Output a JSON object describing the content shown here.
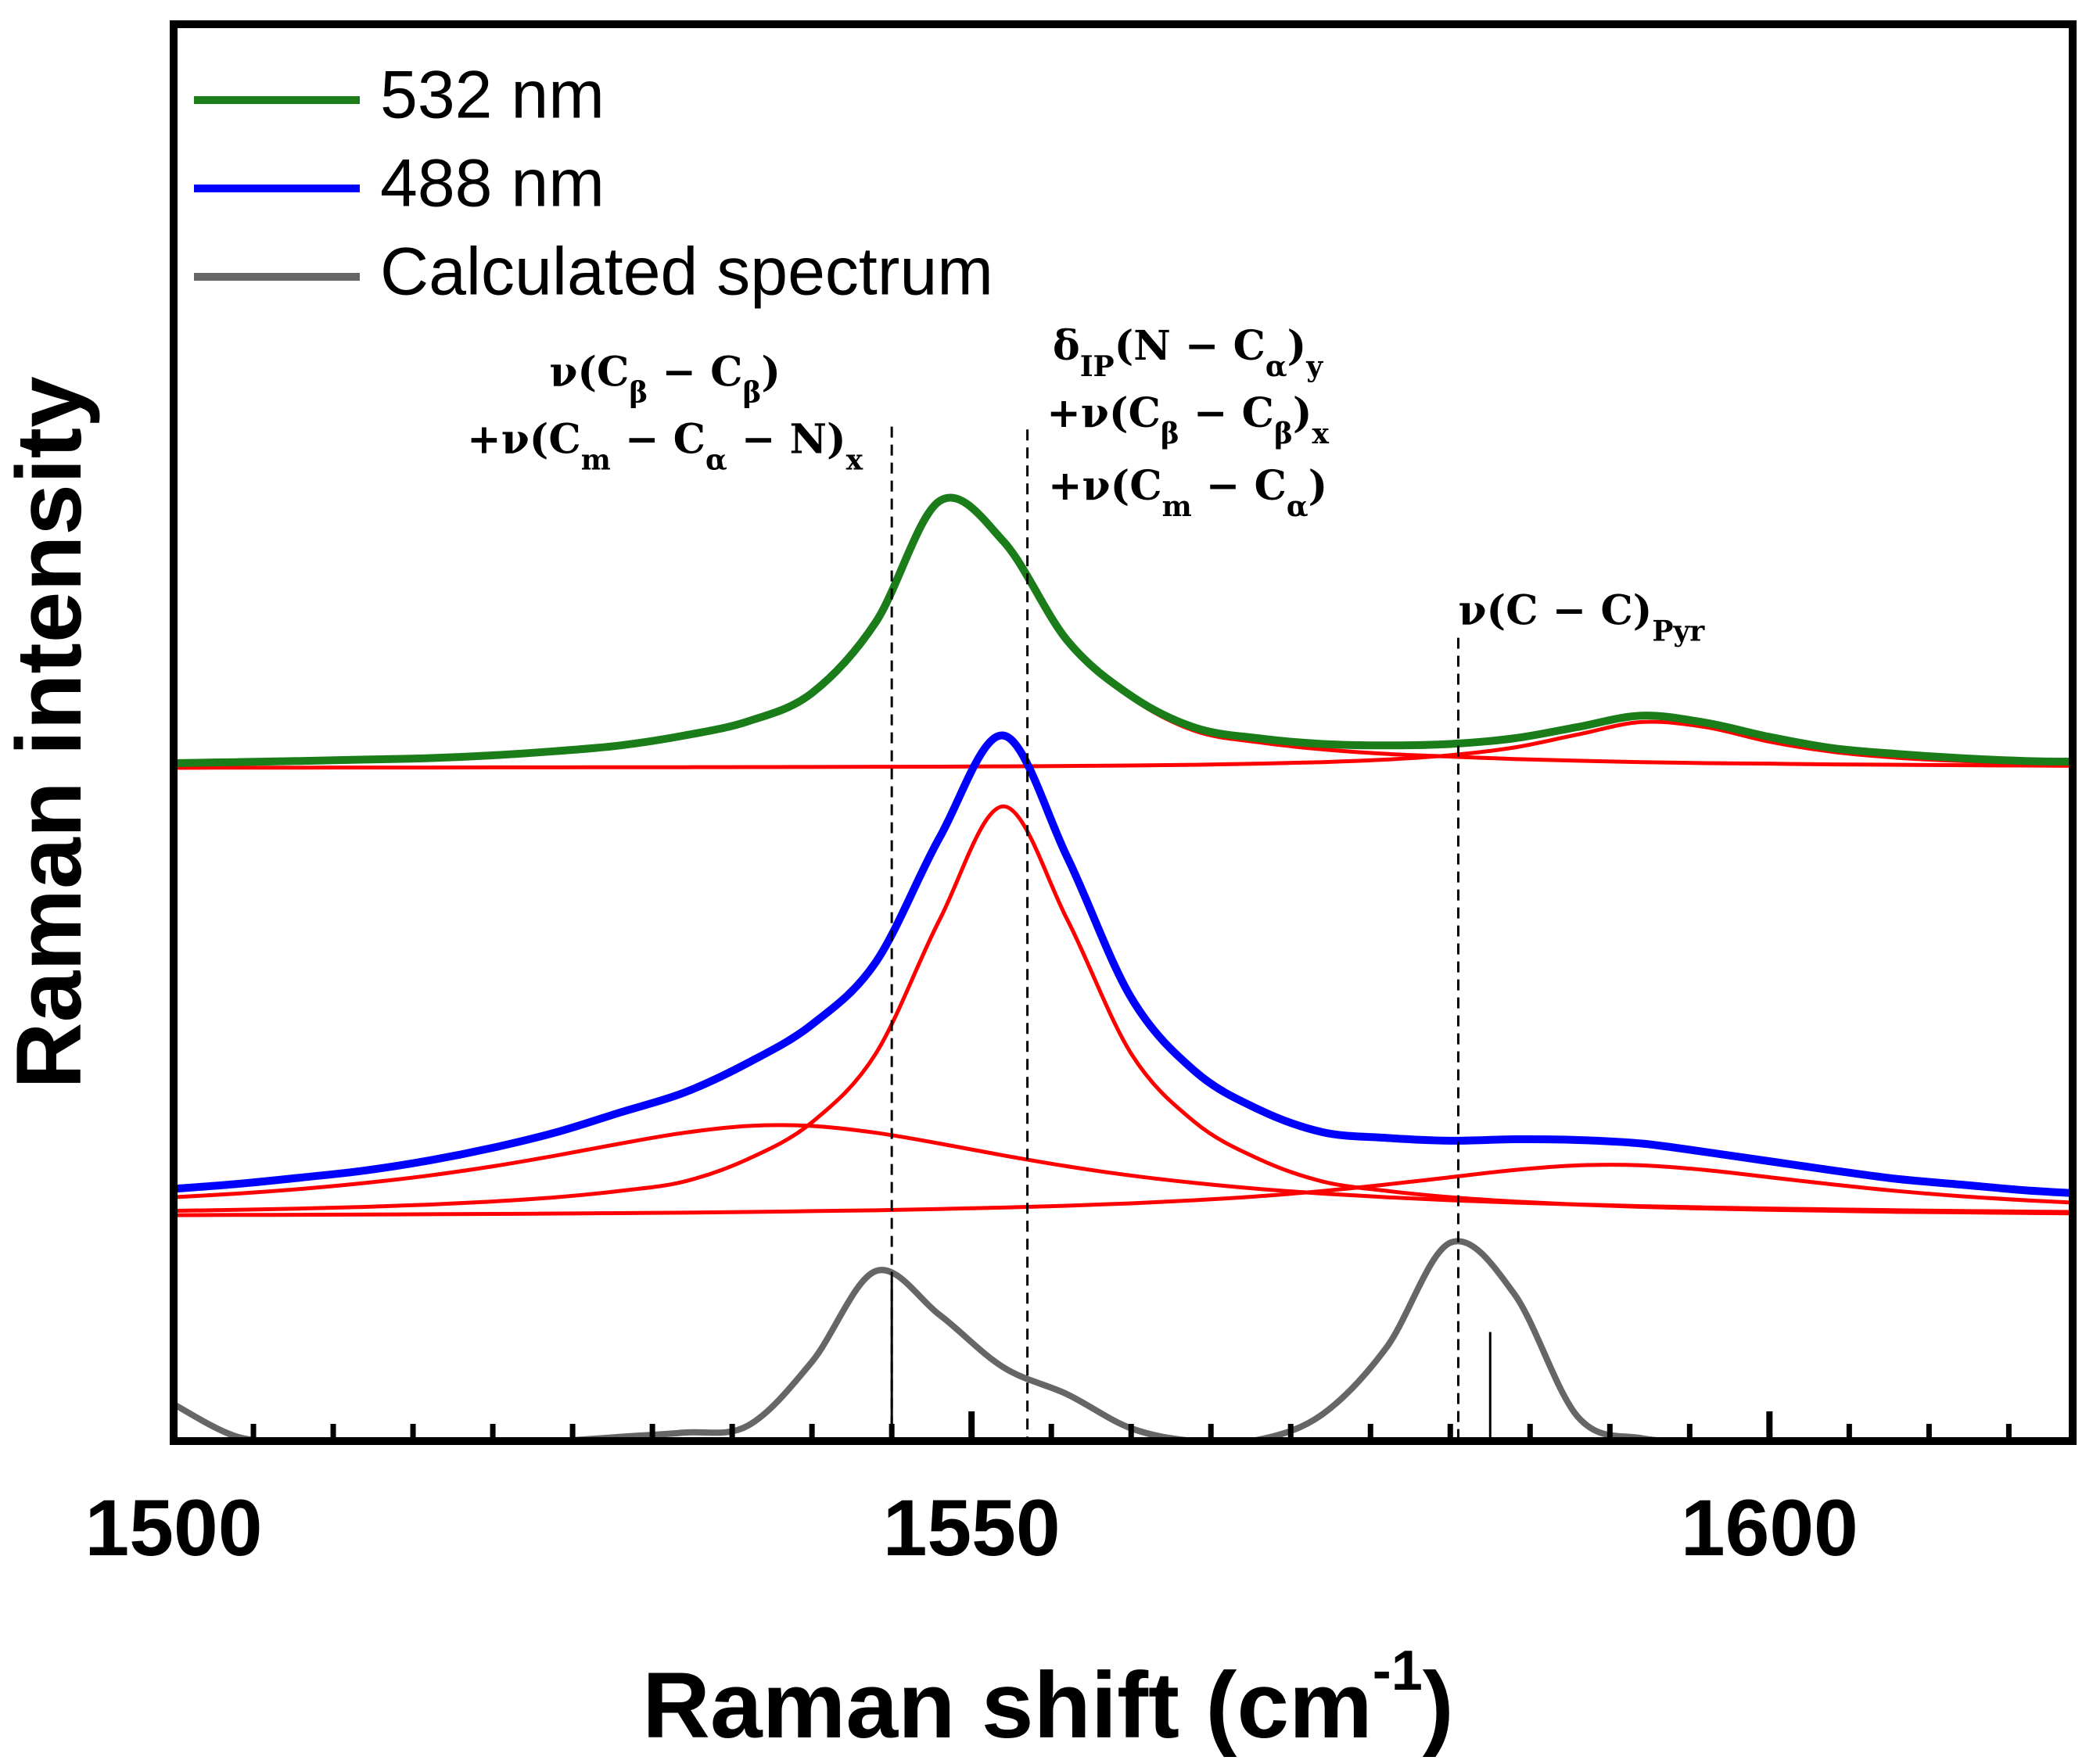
{
  "chart_data": {
    "type": "line",
    "xlabel": [
      "Raman shift (cm",
      "-1",
      ")"
    ],
    "ylabel": "Raman intensity",
    "xlim": [
      1500,
      1619
    ],
    "ylim": [
      0,
      100
    ],
    "xticks": [
      1500,
      1550,
      1600
    ],
    "xminorticks": [
      1505,
      1510,
      1515,
      1520,
      1525,
      1530,
      1535,
      1540,
      1545,
      1555,
      1560,
      1565,
      1570,
      1575,
      1580,
      1585,
      1590,
      1595,
      1605,
      1610,
      1615
    ],
    "legend": "upper left",
    "x": [
      1500,
      1504,
      1508,
      1512,
      1516,
      1520,
      1524,
      1528,
      1532,
      1536,
      1540,
      1544,
      1548,
      1552,
      1556,
      1560,
      1564,
      1568,
      1572,
      1576,
      1580,
      1584,
      1588,
      1592,
      1596,
      1600,
      1604,
      1608,
      1612,
      1616,
      1619
    ],
    "series": [
      {
        "color": "#ff0000",
        "values": [
          47.83,
          47.89,
          47.97,
          48.07,
          48.19,
          48.38,
          48.64,
          49.05,
          49.67,
          50.7,
          52.7,
          57.7,
          66.25,
          63.4,
          56.4,
          52.45,
          50.12,
          49.32,
          48.82,
          48.5,
          48.31,
          48.14,
          48.02,
          47.92,
          47.85,
          47.81,
          47.76,
          47.73,
          47.7,
          47.68,
          47.66
        ]
      },
      {
        "color": "#ff0000",
        "values": [
          47.52,
          47.53,
          47.53,
          47.54,
          47.54,
          47.55,
          47.55,
          47.56,
          47.56,
          47.57,
          47.58,
          47.59,
          47.6,
          47.62,
          47.65,
          47.68,
          47.73,
          47.81,
          47.92,
          48.1,
          48.41,
          48.95,
          49.87,
          50.75,
          50.39,
          49.36,
          48.64,
          48.23,
          48.0,
          47.86,
          47.79
        ]
      },
      {
        "color": "#ff0000",
        "values": [
          16.25,
          16.32,
          16.41,
          16.53,
          16.69,
          16.91,
          17.21,
          17.66,
          18.32,
          19.91,
          22.5,
          27.35,
          36.8,
          44.8,
          36.8,
          27.35,
          22.5,
          19.91,
          18.32,
          17.66,
          17.21,
          16.91,
          16.69,
          16.53,
          16.41,
          16.32,
          16.25,
          16.18,
          16.14,
          16.1,
          16.07
        ]
      },
      {
        "color": "#ff0000",
        "values": [
          17.21,
          17.47,
          17.8,
          18.22,
          18.74,
          19.39,
          20.16,
          21.0,
          21.76,
          22.24,
          22.24,
          21.76,
          21.0,
          20.16,
          19.39,
          18.74,
          18.22,
          17.8,
          17.47,
          17.21,
          17.0,
          16.83,
          16.7,
          16.58,
          16.49,
          16.41,
          16.35,
          16.29,
          16.24,
          16.2,
          16.17
        ]
      },
      {
        "color": "#ff0000",
        "values": [
          15.94,
          15.96,
          15.97,
          15.99,
          16.01,
          16.03,
          16.06,
          16.09,
          16.12,
          16.17,
          16.23,
          16.29,
          16.38,
          16.48,
          16.61,
          16.78,
          17.0,
          17.28,
          17.65,
          18.11,
          18.62,
          19.13,
          19.46,
          19.46,
          19.13,
          18.62,
          18.11,
          17.65,
          17.28,
          17.0,
          16.83
        ]
      },
      {
        "name": "532 nm",
        "color": "#1a7d1a",
        "values": [
          47.85,
          47.92,
          48.0,
          48.1,
          48.2,
          48.4,
          48.7,
          49.1,
          49.8,
          50.8,
          52.8,
          57.8,
          66.35,
          63.5,
          56.5,
          52.6,
          50.35,
          49.6,
          49.2,
          49.1,
          49.2,
          49.6,
          50.4,
          51.2,
          50.7,
          49.7,
          48.9,
          48.5,
          48.2,
          48.0,
          47.95
        ]
      },
      {
        "name": "488 nm",
        "color": "#0000ff",
        "values": [
          17.8,
          18.15,
          18.6,
          19.1,
          19.8,
          20.7,
          21.8,
          23.2,
          24.6,
          26.7,
          29.4,
          33.8,
          42.6,
          49.8,
          41.2,
          31.3,
          26.1,
          23.4,
          21.8,
          21.4,
          21.2,
          21.3,
          21.25,
          21.0,
          20.4,
          19.75,
          19.1,
          18.5,
          18.1,
          17.7,
          17.5
        ]
      },
      {
        "name": "Calculated spectrum",
        "color": "#666666",
        "values": [
          2.6,
          0.3,
          0,
          0,
          0,
          0,
          0,
          0.3,
          0.6,
          1.1,
          5.6,
          12.0,
          8.9,
          5.2,
          3.3,
          0.9,
          0,
          0.1,
          1.9,
          6.6,
          14.0,
          10.4,
          1.7,
          0.2,
          0,
          0,
          0,
          0,
          0,
          0,
          0
        ]
      }
    ],
    "sticks": {
      "x": [
        1545,
        1582.5
      ],
      "values": [
        11.3,
        7.7
      ]
    },
    "annotations": [
      {
        "x": 1545,
        "y_top": 71.6,
        "lines": [
          [
            "ν(C",
            "β",
            " − C",
            "β",
            ")"
          ],
          [
            "+ν(C",
            "m",
            " − C",
            "α",
            " − N)",
            "x"
          ]
        ]
      },
      {
        "x": 1553.5,
        "y_top": 71.4,
        "lines": [
          [
            "δ",
            "IP",
            "(N − C",
            "α",
            ")",
            "y"
          ],
          [
            "+ν(C",
            "β",
            " − C",
            "β",
            ")",
            "x"
          ],
          [
            "+ν(C",
            "m",
            " − C",
            "α",
            ")"
          ]
        ]
      },
      {
        "x": 1580.5,
        "y_top": 56.7,
        "lines": [
          [
            "ν(C − C)",
            "Pyr"
          ]
        ]
      }
    ]
  }
}
